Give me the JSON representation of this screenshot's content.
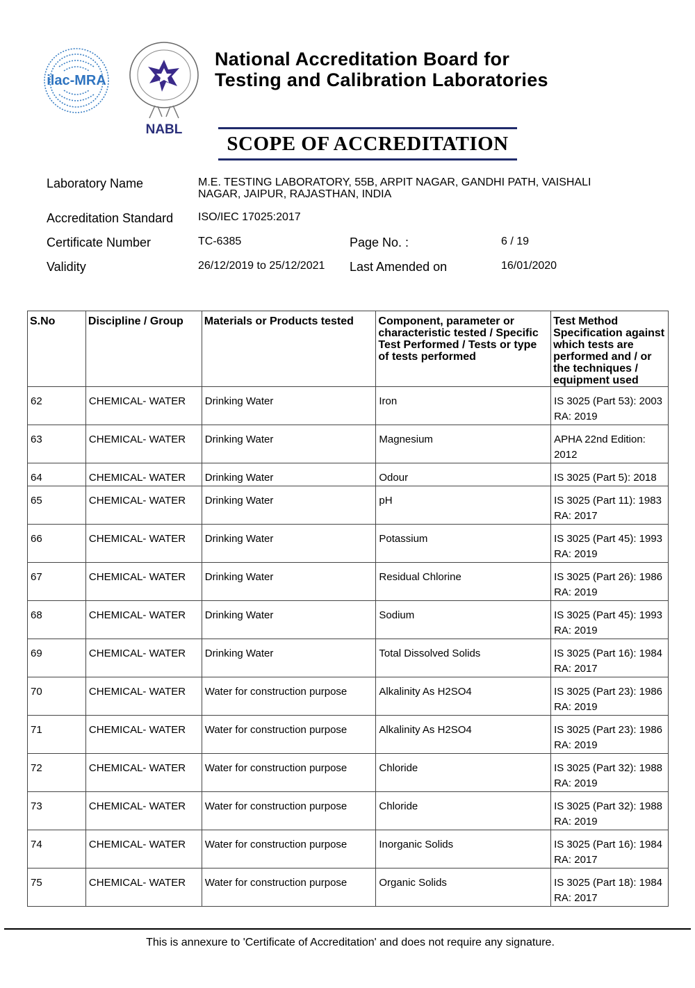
{
  "header": {
    "logos": {
      "ilac": "ilac-MRA",
      "nabl": "NABL"
    },
    "org_line1": "National Accreditation Board for",
    "org_line2": "Testing and Calibration Laboratories",
    "document_title": "SCOPE OF ACCREDITATION",
    "accent_color": "#1f2a6b"
  },
  "info": {
    "lab_name_label": "Laboratory Name",
    "lab_name_line1": "M.E. TESTING LABORATORY, 55B, ARPIT NAGAR, GANDHI PATH, VAISHALI",
    "lab_name_line2": "NAGAR,  JAIPUR, RAJASTHAN, INDIA",
    "standard_label": "Accreditation Standard",
    "standard_value": "ISO/IEC 17025:2017",
    "cert_label": "Certificate Number",
    "cert_value": "TC-6385",
    "page_label": "Page No. :",
    "page_value": "6 / 19",
    "validity_label": "Validity",
    "validity_value": "26/12/2019 to 25/12/2021",
    "amended_label": "Last Amended on",
    "amended_value": "16/01/2020"
  },
  "table": {
    "headers": [
      "S.No",
      "Discipline / Group",
      "Materials or Products tested",
      "Component, parameter or characteristic tested / Specific Test Performed / Tests or type of tests performed",
      "Test Method Specification against which tests are performed and / or the techniques / equipment used"
    ],
    "rows": [
      [
        "62",
        "CHEMICAL- WATER",
        "Drinking Water",
        "Iron",
        "IS 3025 (Part 53): 2003",
        "RA: 2019"
      ],
      [
        "63",
        "CHEMICAL- WATER",
        "Drinking Water",
        "Magnesium",
        "APHA 22nd Edition:",
        "2012"
      ],
      [
        "64",
        "CHEMICAL- WATER",
        "Drinking Water",
        "Odour",
        "IS 3025 (Part 5): 2018",
        ""
      ],
      [
        "65",
        "CHEMICAL- WATER",
        "Drinking Water",
        "pH",
        "IS 3025 (Part 11): 1983",
        "RA: 2017"
      ],
      [
        "66",
        "CHEMICAL- WATER",
        "Drinking Water",
        "Potassium",
        "IS 3025 (Part 45): 1993",
        "RA: 2019"
      ],
      [
        "67",
        "CHEMICAL- WATER",
        "Drinking Water",
        "Residual Chlorine",
        "IS 3025 (Part 26): 1986",
        "RA: 2019"
      ],
      [
        "68",
        "CHEMICAL- WATER",
        "Drinking Water",
        "Sodium",
        "IS 3025 (Part 45): 1993",
        "RA: 2019"
      ],
      [
        "69",
        "CHEMICAL- WATER",
        "Drinking Water",
        "Total Dissolved Solids",
        "IS 3025 (Part 16): 1984",
        "RA: 2017"
      ],
      [
        "70",
        "CHEMICAL- WATER",
        "Water for construction purpose",
        "Alkalinity As H2SO4",
        "IS 3025 (Part 23): 1986",
        "RA: 2019"
      ],
      [
        "71",
        "CHEMICAL- WATER",
        "Water for construction purpose",
        "Alkalinity As H2SO4",
        "IS 3025 (Part 23): 1986",
        "RA: 2019"
      ],
      [
        "72",
        "CHEMICAL- WATER",
        "Water for construction purpose",
        "Chloride",
        "IS 3025 (Part 32): 1988",
        "RA: 2019"
      ],
      [
        "73",
        "CHEMICAL- WATER",
        "Water for construction purpose",
        "Chloride",
        "IS 3025 (Part 32): 1988",
        "RA: 2019"
      ],
      [
        "74",
        "CHEMICAL- WATER",
        "Water for construction purpose",
        "Inorganic Solids",
        "IS 3025 (Part 16): 1984",
        "RA: 2017"
      ],
      [
        "75",
        "CHEMICAL- WATER",
        "Water for construction purpose",
        "Organic Solids",
        "IS 3025 (Part 18): 1984",
        "RA: 2017"
      ]
    ]
  },
  "footer": {
    "text": "This is annexure to 'Certificate of Accreditation' and does not require any signature."
  }
}
